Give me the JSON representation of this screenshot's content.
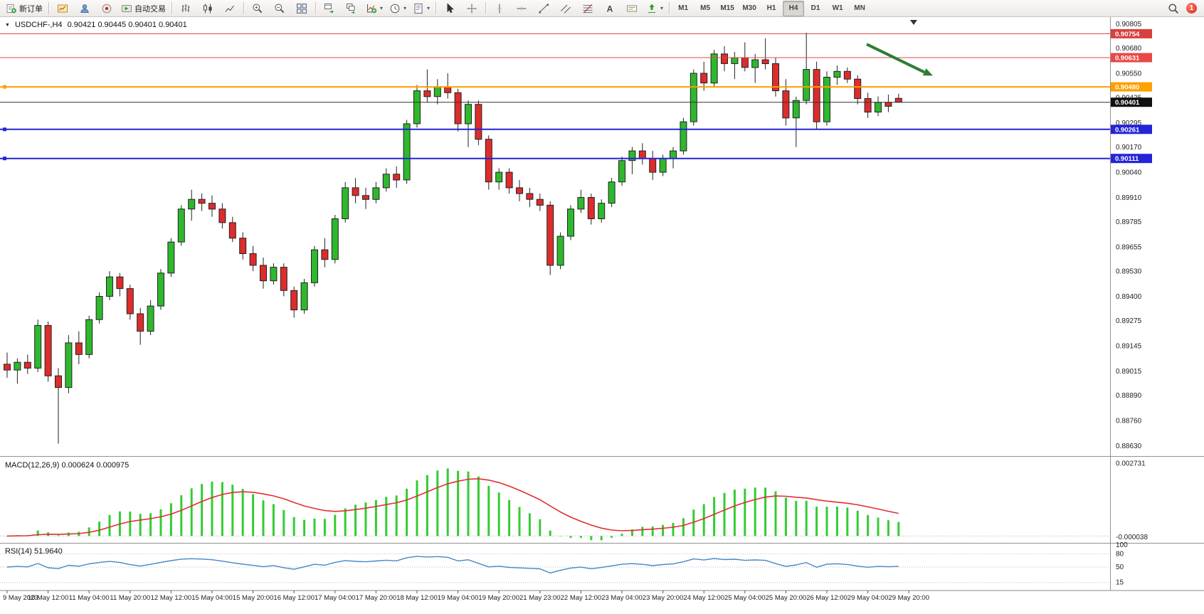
{
  "toolbar": {
    "active_timeframe": "H4",
    "notification_count": "1",
    "groups": [
      {
        "items": [
          {
            "name": "new-order",
            "icon": "new-order",
            "label": "新订单"
          }
        ]
      },
      {
        "items": [
          {
            "name": "charts",
            "icon": "charts"
          },
          {
            "name": "profile",
            "icon": "profile"
          },
          {
            "name": "community",
            "icon": "community"
          },
          {
            "name": "autotrading",
            "icon": "autotrading",
            "label": "自动交易"
          }
        ]
      },
      {
        "items": [
          {
            "name": "bar-chart",
            "icon": "bar-chart"
          },
          {
            "name": "candlestick-chart",
            "icon": "candlestick"
          },
          {
            "name": "line-chart",
            "icon": "line-chart"
          }
        ]
      },
      {
        "items": [
          {
            "name": "zoom-in",
            "icon": "zoom-in"
          },
          {
            "name": "zoom-out",
            "icon": "zoom-out"
          },
          {
            "name": "tile-windows",
            "icon": "tile"
          }
        ]
      },
      {
        "items": [
          {
            "name": "arrange-windows",
            "icon": "arrange"
          },
          {
            "name": "cascade-windows",
            "icon": "cascade"
          },
          {
            "name": "indicators",
            "icon": "indicators",
            "caret": true
          },
          {
            "name": "periods",
            "icon": "clock",
            "caret": true
          },
          {
            "name": "templates",
            "icon": "templates",
            "caret": true
          }
        ]
      },
      {
        "items": [
          {
            "name": "cursor",
            "icon": "cursor"
          },
          {
            "name": "crosshair",
            "icon": "crosshair"
          }
        ]
      },
      {
        "items": [
          {
            "name": "vertical-line",
            "icon": "vline"
          },
          {
            "name": "horizontal-line",
            "icon": "hline"
          },
          {
            "name": "trendline",
            "icon": "trendline"
          },
          {
            "name": "equidistant-channel",
            "icon": "channel"
          },
          {
            "name": "fibonacci",
            "icon": "fibonacci"
          },
          {
            "name": "text",
            "icon": "text"
          },
          {
            "name": "text-label",
            "icon": "label"
          },
          {
            "name": "shapes",
            "icon": "shapes",
            "caret": true
          }
        ]
      },
      {
        "type": "timeframes",
        "items": [
          {
            "label": "M1"
          },
          {
            "label": "M5"
          },
          {
            "label": "M15"
          },
          {
            "label": "M30"
          },
          {
            "label": "H1"
          },
          {
            "label": "H4"
          },
          {
            "label": "D1"
          },
          {
            "label": "W1"
          },
          {
            "label": "MN"
          }
        ]
      },
      {
        "spacer": true,
        "items": [
          {
            "name": "search",
            "icon": "search"
          },
          {
            "name": "notifications",
            "badge": true
          }
        ]
      }
    ]
  },
  "chart": {
    "title": {
      "symbol": "USDCHF-,H4",
      "ohlc": "0.90421 0.90445 0.90401 0.90401"
    },
    "macd_title": "MACD(12,26,9) 0.000624 0.000975",
    "rsi_title": "RSI(14) 51.9640"
  },
  "chart_data": {
    "type": "candlestick",
    "symbol": "USDCHF-",
    "timeframe": "H4",
    "current_bar": {
      "open": 0.90421,
      "high": 0.90445,
      "low": 0.90401,
      "close": 0.90401
    },
    "price_axis_labels": [
      "0.90805",
      "0.90680",
      "0.90550",
      "0.90425",
      "0.90295",
      "0.90170",
      "0.90040",
      "0.89910",
      "0.89785",
      "0.89655",
      "0.89530",
      "0.89400",
      "0.89275",
      "0.89145",
      "0.89015",
      "0.88890",
      "0.88760",
      "0.88630"
    ],
    "time_labels": [
      "9 May 2023",
      "10 May 12:00",
      "11 May 04:00",
      "11 May 20:00",
      "12 May 12:00",
      "15 May 04:00",
      "15 May 20:00",
      "16 May 12:00",
      "17 May 04:00",
      "17 May 20:00",
      "18 May 12:00",
      "19 May 04:00",
      "19 May 20:00",
      "21 May 23:00",
      "22 May 12:00",
      "23 May 04:00",
      "23 May 20:00",
      "24 May 12:00",
      "25 May 04:00",
      "25 May 20:00",
      "26 May 12:00",
      "29 May 04:00",
      "29 May 20:00"
    ],
    "candles": [
      [
        0.8905,
        0.8911,
        0.8898,
        0.8902
      ],
      [
        0.8902,
        0.8908,
        0.8895,
        0.8906
      ],
      [
        0.8906,
        0.891,
        0.89,
        0.8903
      ],
      [
        0.8903,
        0.8928,
        0.8901,
        0.8925
      ],
      [
        0.8925,
        0.8927,
        0.8896,
        0.8899
      ],
      [
        0.8899,
        0.8903,
        0.8864,
        0.8893
      ],
      [
        0.8893,
        0.892,
        0.889,
        0.8916
      ],
      [
        0.8916,
        0.8922,
        0.8905,
        0.891
      ],
      [
        0.891,
        0.893,
        0.8908,
        0.8928
      ],
      [
        0.8928,
        0.8942,
        0.8926,
        0.894
      ],
      [
        0.894,
        0.8953,
        0.8938,
        0.895
      ],
      [
        0.895,
        0.8952,
        0.894,
        0.8944
      ],
      [
        0.8944,
        0.8946,
        0.8928,
        0.8931
      ],
      [
        0.8931,
        0.8934,
        0.8915,
        0.8922
      ],
      [
        0.8922,
        0.8938,
        0.892,
        0.8935
      ],
      [
        0.8935,
        0.8954,
        0.8933,
        0.8952
      ],
      [
        0.8952,
        0.897,
        0.895,
        0.8968
      ],
      [
        0.8968,
        0.8987,
        0.8966,
        0.8985
      ],
      [
        0.8985,
        0.8995,
        0.8979,
        0.899
      ],
      [
        0.899,
        0.8993,
        0.8984,
        0.8988
      ],
      [
        0.8988,
        0.8992,
        0.8981,
        0.8985
      ],
      [
        0.8985,
        0.8988,
        0.8975,
        0.8978
      ],
      [
        0.8978,
        0.8981,
        0.8968,
        0.897
      ],
      [
        0.897,
        0.8973,
        0.8959,
        0.8962
      ],
      [
        0.8962,
        0.8966,
        0.8953,
        0.8956
      ],
      [
        0.8956,
        0.896,
        0.8944,
        0.8948
      ],
      [
        0.8948,
        0.8957,
        0.8946,
        0.8955
      ],
      [
        0.8955,
        0.8957,
        0.894,
        0.8943
      ],
      [
        0.8943,
        0.8945,
        0.8929,
        0.8933
      ],
      [
        0.8933,
        0.8949,
        0.8931,
        0.8947
      ],
      [
        0.8947,
        0.8966,
        0.8945,
        0.8964
      ],
      [
        0.8964,
        0.897,
        0.8955,
        0.8959
      ],
      [
        0.8959,
        0.8982,
        0.8957,
        0.898
      ],
      [
        0.898,
        0.8999,
        0.8978,
        0.8996
      ],
      [
        0.8996,
        0.9001,
        0.8988,
        0.8992
      ],
      [
        0.8992,
        0.8996,
        0.8985,
        0.899
      ],
      [
        0.899,
        0.8999,
        0.8988,
        0.8996
      ],
      [
        0.8996,
        0.9006,
        0.8994,
        0.9003
      ],
      [
        0.9003,
        0.9007,
        0.8996,
        0.9
      ],
      [
        0.9,
        0.9031,
        0.8998,
        0.9029
      ],
      [
        0.9029,
        0.9049,
        0.9027,
        0.9046
      ],
      [
        0.9046,
        0.9057,
        0.904,
        0.9043
      ],
      [
        0.9043,
        0.9052,
        0.9039,
        0.9048
      ],
      [
        0.9048,
        0.9055,
        0.9042,
        0.9045
      ],
      [
        0.9045,
        0.9047,
        0.9025,
        0.9029
      ],
      [
        0.9029,
        0.9041,
        0.9017,
        0.9039
      ],
      [
        0.9039,
        0.9041,
        0.9018,
        0.9021
      ],
      [
        0.9021,
        0.9023,
        0.8995,
        0.8999
      ],
      [
        0.8999,
        0.9006,
        0.8995,
        0.9004
      ],
      [
        0.9004,
        0.9006,
        0.8993,
        0.8996
      ],
      [
        0.8996,
        0.9,
        0.8989,
        0.8993
      ],
      [
        0.8993,
        0.8996,
        0.8986,
        0.899
      ],
      [
        0.899,
        0.8993,
        0.8984,
        0.8987
      ],
      [
        0.8987,
        0.8989,
        0.8951,
        0.8956
      ],
      [
        0.8956,
        0.8973,
        0.8954,
        0.8971
      ],
      [
        0.8971,
        0.8987,
        0.8969,
        0.8985
      ],
      [
        0.8985,
        0.8995,
        0.8983,
        0.8991
      ],
      [
        0.8991,
        0.8993,
        0.8977,
        0.898
      ],
      [
        0.898,
        0.899,
        0.8978,
        0.8988
      ],
      [
        0.8988,
        0.9001,
        0.8986,
        0.8999
      ],
      [
        0.8999,
        0.9012,
        0.8997,
        0.901
      ],
      [
        0.901,
        0.9017,
        0.9003,
        0.9015
      ],
      [
        0.9015,
        0.9019,
        0.9008,
        0.9011
      ],
      [
        0.9011,
        0.9015,
        0.9,
        0.9004
      ],
      [
        0.9004,
        0.9013,
        0.9002,
        0.9011
      ],
      [
        0.9011,
        0.9017,
        0.9006,
        0.9015
      ],
      [
        0.9015,
        0.9032,
        0.9013,
        0.903
      ],
      [
        0.903,
        0.9057,
        0.9028,
        0.9055
      ],
      [
        0.9055,
        0.9061,
        0.9046,
        0.905
      ],
      [
        0.905,
        0.9067,
        0.9048,
        0.9065
      ],
      [
        0.9065,
        0.9069,
        0.9056,
        0.906
      ],
      [
        0.906,
        0.9066,
        0.9052,
        0.9063
      ],
      [
        0.9063,
        0.9071,
        0.9056,
        0.9058
      ],
      [
        0.9058,
        0.9065,
        0.905,
        0.9062
      ],
      [
        0.9062,
        0.9073,
        0.9057,
        0.906
      ],
      [
        0.906,
        0.9063,
        0.9043,
        0.9046
      ],
      [
        0.9046,
        0.9052,
        0.9028,
        0.9032
      ],
      [
        0.9032,
        0.9043,
        0.9017,
        0.9041
      ],
      [
        0.9041,
        0.9076,
        0.9039,
        0.9057
      ],
      [
        0.9057,
        0.9061,
        0.9026,
        0.903
      ],
      [
        0.903,
        0.9056,
        0.9028,
        0.9053
      ],
      [
        0.9053,
        0.9059,
        0.9049,
        0.9056
      ],
      [
        0.9056,
        0.9058,
        0.905,
        0.9052
      ],
      [
        0.9052,
        0.9054,
        0.9039,
        0.9042
      ],
      [
        0.9042,
        0.9045,
        0.9032,
        0.9035
      ],
      [
        0.9035,
        0.9043,
        0.9033,
        0.904
      ],
      [
        0.904,
        0.9044,
        0.9035,
        0.9038
      ],
      [
        0.90421,
        0.90445,
        0.90401,
        0.90401
      ]
    ],
    "hlines": [
      {
        "name": "resistance-line-upper",
        "price": 0.90754,
        "label": "0.90754",
        "color": "#d84040",
        "width": 1,
        "handle": false
      },
      {
        "name": "resistance-line-lower",
        "price": 0.90631,
        "label": "0.90631",
        "color": "#e84848",
        "width": 1,
        "handle": false
      },
      {
        "name": "pivot-orange-line",
        "price": 0.9048,
        "label": "0.90480",
        "color": "#ff9f00",
        "width": 2,
        "handle": true
      },
      {
        "name": "current-price-line",
        "price": 0.90401,
        "label": "0.90401",
        "color": "#333333",
        "width": 1,
        "handle": false
      },
      {
        "name": "support-blue-line-upper",
        "price": 0.90261,
        "label": "0.90261",
        "color": "#2424d8",
        "width": 2,
        "handle": true
      },
      {
        "name": "support-blue-line-lower",
        "price": 0.90111,
        "label": "0.90111",
        "color": "#2424d8",
        "width": 2,
        "handle": true
      }
    ],
    "indicators": {
      "macd": {
        "params": [
          12,
          26,
          9
        ],
        "values_label": [
          "0.000624",
          "0.000975"
        ],
        "axis_max_label": "0.002731",
        "axis_min_label": "-0.000038"
      },
      "rsi": {
        "period": 14,
        "value": "51.9640",
        "levels": [
          "100",
          "80",
          "50",
          "15"
        ]
      }
    },
    "annotation_arrow": {
      "color": "#2f7d32",
      "from_price": 0.907,
      "to_price": 0.90545
    },
    "colors": {
      "bull": "#2eb82e",
      "bear": "#dd2c2c",
      "wick": "#222222",
      "macd_bar": "#33cc33",
      "macd_signal": "#e03030",
      "rsi_line": "#4a86c8"
    }
  }
}
